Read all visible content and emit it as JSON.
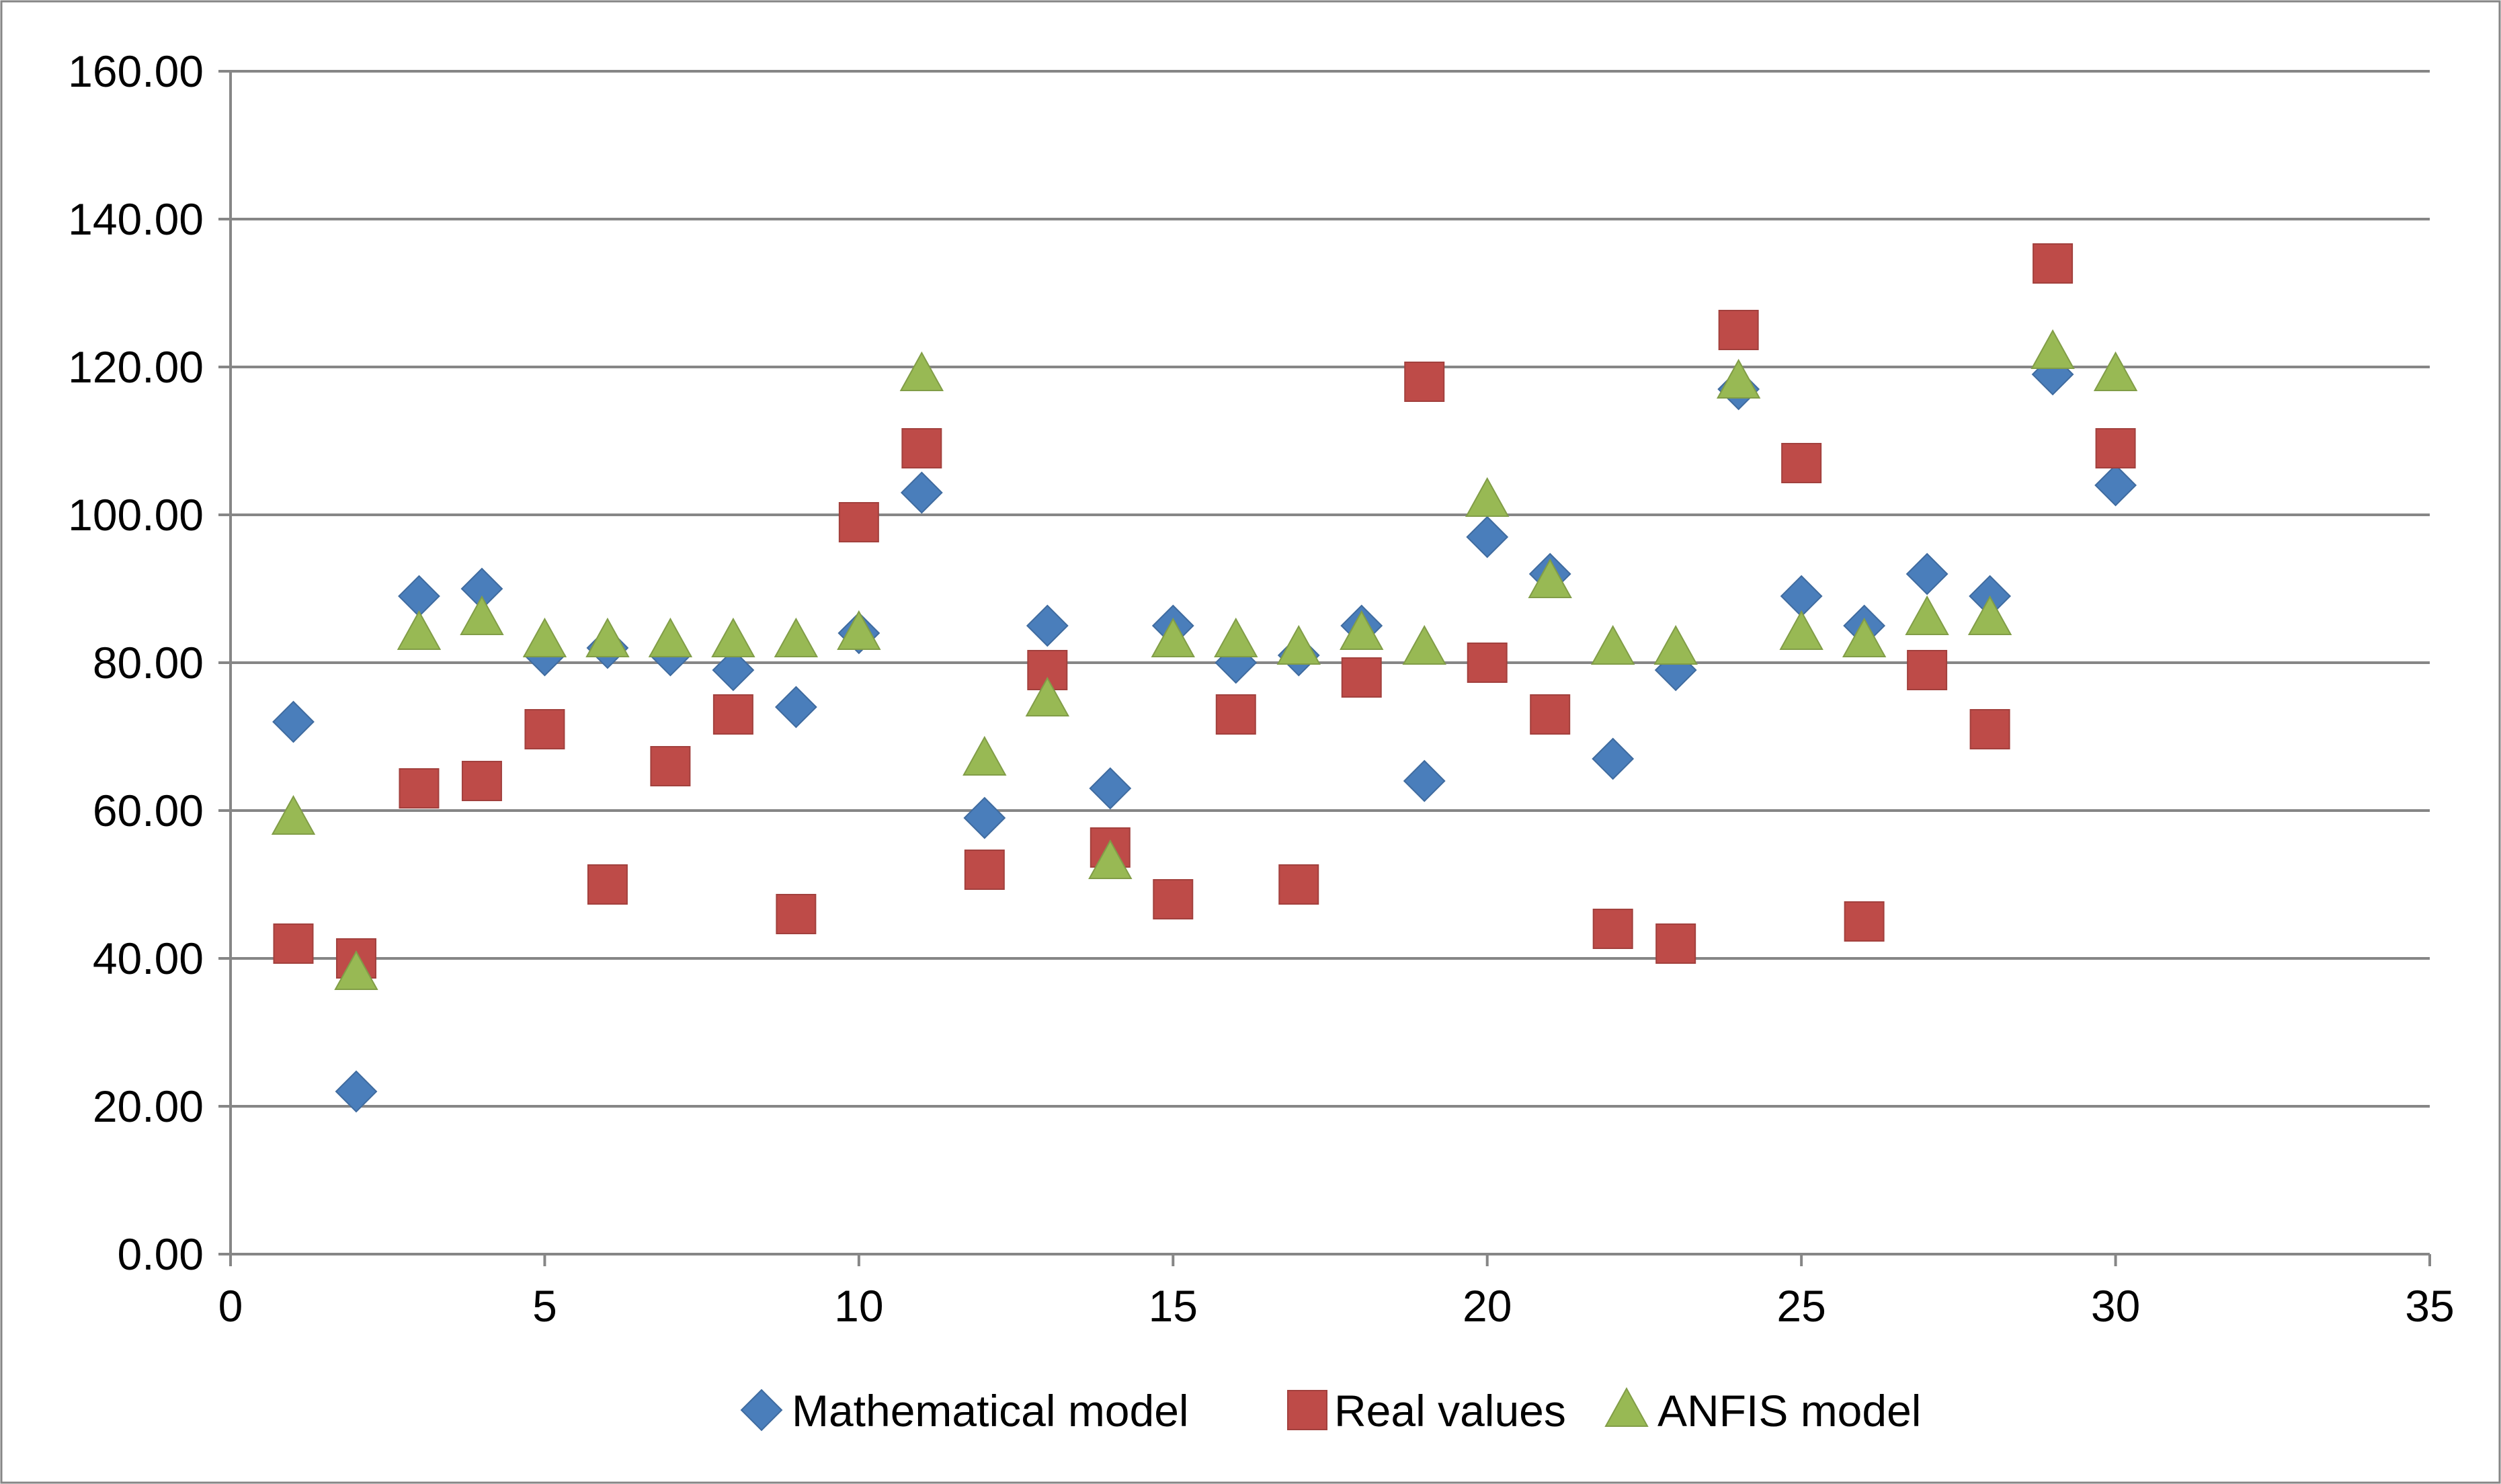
{
  "chart_data": {
    "type": "scatter",
    "title": "",
    "xlabel": "",
    "ylabel": "",
    "xlim": [
      0,
      35
    ],
    "ylim": [
      0,
      160
    ],
    "x_ticks": [
      0,
      5,
      10,
      15,
      20,
      25,
      30,
      35
    ],
    "y_ticks": [
      0,
      20,
      40,
      60,
      80,
      100,
      120,
      140,
      160
    ],
    "x_tick_labels": [
      "0",
      "5",
      "10",
      "15",
      "20",
      "25",
      "30",
      "35"
    ],
    "y_tick_labels": [
      "0.00",
      "20.00",
      "40.00",
      "60.00",
      "80.00",
      "100.00",
      "120.00",
      "140.00",
      "160.00"
    ],
    "grid": "horizontal",
    "legend_position": "bottom",
    "x": [
      1,
      2,
      3,
      4,
      5,
      6,
      7,
      8,
      9,
      10,
      11,
      12,
      13,
      14,
      15,
      16,
      17,
      18,
      19,
      20,
      21,
      22,
      23,
      24,
      25,
      26,
      27,
      28,
      29,
      30
    ],
    "series": [
      {
        "name": "Mathematical model",
        "marker": "diamond",
        "color": "#4a7ebb",
        "values": [
          72,
          22,
          89,
          90,
          81,
          82,
          81,
          79,
          74,
          84,
          103,
          59,
          85,
          63,
          85,
          80,
          81,
          85,
          64,
          97,
          92,
          67,
          79,
          117,
          89,
          85,
          92,
          89,
          119,
          104
        ]
      },
      {
        "name": "Real values",
        "marker": "square",
        "color": "#be4b48",
        "values": [
          42,
          40,
          63,
          64,
          71,
          50,
          66,
          73,
          46,
          99,
          109,
          52,
          79,
          55,
          48,
          73,
          50,
          78,
          118,
          80,
          73,
          44,
          42,
          125,
          107,
          45,
          79,
          71,
          134,
          109
        ]
      },
      {
        "name": "ANFIS model",
        "marker": "triangle",
        "color": "#98b954",
        "values": [
          59,
          38,
          84,
          86,
          83,
          83,
          83,
          83,
          83,
          84,
          119,
          67,
          75,
          53,
          83,
          83,
          82,
          84,
          82,
          102,
          91,
          82,
          82,
          118,
          84,
          83,
          86,
          86,
          122,
          119
        ]
      }
    ]
  }
}
